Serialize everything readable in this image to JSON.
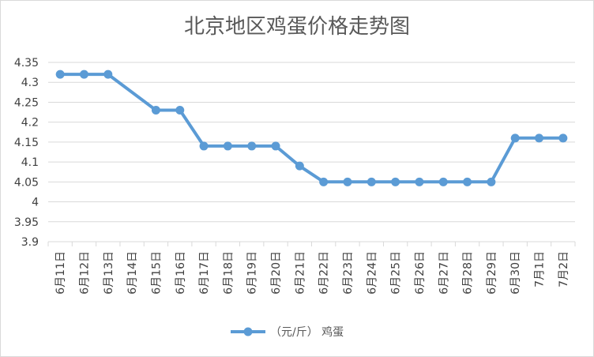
{
  "chart_data": {
    "type": "line",
    "title": "北京地区鸡蛋价格走势图",
    "xlabel": "",
    "ylabel": "",
    "categories": [
      "6月11日",
      "6月12日",
      "6月13日",
      "6月14日",
      "6月15日",
      "6月16日",
      "6月17日",
      "6月18日",
      "6月19日",
      "6月20日",
      "6月21日",
      "6月22日",
      "6月23日",
      "6月24日",
      "6月25日",
      "6月26日",
      "6月27日",
      "6月28日",
      "6月29日",
      "6月30日",
      "7月1日",
      "7月2日"
    ],
    "yticks": [
      "4.35",
      "4.3",
      "4.25",
      "4.2",
      "4.15",
      "4.1",
      "4.05",
      "4",
      "3.95",
      "3.9"
    ],
    "ylim": [
      3.9,
      4.35
    ],
    "grid": true,
    "legend_position": "bottom",
    "series": [
      {
        "name": "（元/斤） 鸡蛋",
        "color": "#5b9bd5",
        "values": [
          4.32,
          4.32,
          4.32,
          null,
          4.23,
          4.23,
          4.14,
          4.14,
          4.14,
          4.14,
          4.09,
          4.05,
          4.05,
          4.05,
          4.05,
          4.05,
          4.05,
          4.05,
          4.05,
          4.16,
          4.16,
          4.16
        ]
      }
    ]
  }
}
